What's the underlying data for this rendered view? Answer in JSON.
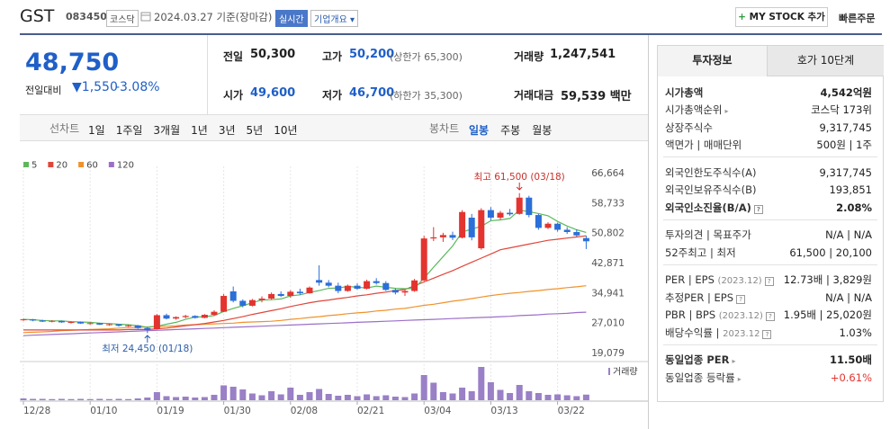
{
  "header": {
    "name": "GST",
    "code": "083450",
    "market": "코스닥",
    "date": "2024.03.27 기준(장마감)",
    "status": "실시간",
    "menu": "기업개요",
    "mystock": "MY STOCK 추가",
    "quick_order": "빠른주문"
  },
  "price": {
    "current": "48,750",
    "change_label": "전일대비",
    "change": "1,550",
    "rate": "-3.08%"
  },
  "summary": {
    "prev": {
      "label": "전일",
      "value": "50,300"
    },
    "high": {
      "label": "고가",
      "value": "50,200",
      "note": "(상한가 65,300)"
    },
    "volume": {
      "label": "거래량",
      "value": "1,247,541"
    },
    "open": {
      "label": "시가",
      "value": "49,600"
    },
    "low": {
      "label": "저가",
      "value": "46,700",
      "note": "(하한가 35,300)"
    },
    "amount": {
      "label": "거래대금",
      "value": "59,539 백만"
    }
  },
  "toolbar": {
    "line_label": "선차트",
    "periods": [
      "1일",
      "1주일",
      "3개월",
      "1년",
      "3년",
      "5년",
      "10년"
    ],
    "candle_label": "봉차트",
    "intervals": [
      "일봉",
      "주봉",
      "월봉"
    ],
    "active_interval": 0
  },
  "chart_data": {
    "type": "candlestick",
    "categories": [
      "12/28",
      null,
      null,
      null,
      null,
      null,
      null,
      "01/10",
      null,
      null,
      null,
      null,
      null,
      null,
      "01/19",
      null,
      null,
      null,
      null,
      null,
      null,
      "01/30",
      null,
      null,
      null,
      null,
      null,
      null,
      "02/08",
      null,
      null,
      null,
      null,
      null,
      null,
      "02/21",
      null,
      null,
      null,
      null,
      null,
      null,
      "03/04",
      null,
      null,
      null,
      null,
      null,
      null,
      "03/13",
      null,
      null,
      null,
      null,
      null,
      null,
      "03/22",
      null,
      null,
      null
    ],
    "ohlc": [
      [
        28000,
        28300,
        27700,
        28100
      ],
      [
        28100,
        28200,
        27600,
        27800
      ],
      [
        27800,
        28000,
        27400,
        27500
      ],
      [
        27500,
        27900,
        27300,
        27700
      ],
      [
        27700,
        27800,
        27200,
        27300
      ],
      [
        27300,
        27600,
        27000,
        27400
      ],
      [
        27400,
        27500,
        26900,
        27000
      ],
      [
        27000,
        27300,
        26700,
        27100
      ],
      [
        27100,
        27200,
        26600,
        26700
      ],
      [
        26700,
        27000,
        26400,
        26800
      ],
      [
        26800,
        26900,
        26200,
        26400
      ],
      [
        26400,
        26700,
        26100,
        26500
      ],
      [
        26500,
        26600,
        25600,
        25800
      ],
      [
        25800,
        26000,
        24450,
        25300
      ],
      [
        25500,
        29500,
        25400,
        29200
      ],
      [
        29200,
        29600,
        28100,
        28300
      ],
      [
        28300,
        28900,
        28000,
        28700
      ],
      [
        28700,
        29300,
        28400,
        29000
      ],
      [
        29000,
        29200,
        28300,
        28500
      ],
      [
        28500,
        29500,
        28400,
        29300
      ],
      [
        29300,
        30500,
        29000,
        30100
      ],
      [
        30100,
        34800,
        30000,
        34300
      ],
      [
        35500,
        36800,
        32600,
        33000
      ],
      [
        33000,
        33400,
        31300,
        31700
      ],
      [
        31700,
        33500,
        31500,
        33200
      ],
      [
        33200,
        34200,
        32600,
        33600
      ],
      [
        33600,
        35200,
        33300,
        34800
      ],
      [
        34800,
        35500,
        34000,
        34300
      ],
      [
        34300,
        35800,
        33800,
        35400
      ],
      [
        35400,
        36200,
        34600,
        35000
      ],
      [
        35000,
        36800,
        34900,
        36500
      ],
      [
        38500,
        42400,
        37000,
        37800
      ],
      [
        37800,
        38500,
        36600,
        37000
      ],
      [
        37000,
        37800,
        35000,
        35600
      ],
      [
        35600,
        37300,
        35400,
        37000
      ],
      [
        37000,
        37600,
        35900,
        36200
      ],
      [
        36200,
        38600,
        36000,
        38200
      ],
      [
        38200,
        39000,
        37300,
        37700
      ],
      [
        37700,
        38200,
        35600,
        35900
      ],
      [
        35900,
        36300,
        34700,
        35200
      ],
      [
        35200,
        36000,
        34300,
        35600
      ],
      [
        35600,
        38800,
        35400,
        38400
      ],
      [
        38400,
        50200,
        38200,
        49500
      ],
      [
        49500,
        52500,
        48800,
        49800
      ],
      [
        49800,
        51000,
        48600,
        50400
      ],
      [
        50400,
        51300,
        49100,
        49700
      ],
      [
        49700,
        57000,
        49500,
        56500
      ],
      [
        55000,
        56000,
        49000,
        49800
      ],
      [
        46900,
        57500,
        46500,
        57000
      ],
      [
        57000,
        57800,
        54300,
        55000
      ],
      [
        55000,
        56800,
        54500,
        56300
      ],
      [
        56300,
        57300,
        55500,
        55900
      ],
      [
        56000,
        61500,
        55800,
        60300
      ],
      [
        60300,
        60800,
        55100,
        55700
      ],
      [
        55700,
        56000,
        51800,
        52300
      ],
      [
        52300,
        53800,
        52000,
        53400
      ],
      [
        53400,
        53700,
        51300,
        51800
      ],
      [
        51800,
        52500,
        50700,
        51200
      ],
      [
        51200,
        51900,
        50000,
        50300
      ],
      [
        49600,
        50200,
        46700,
        48750
      ]
    ],
    "up_color": "#e3342f",
    "down_color": "#2b6fd8",
    "series": [
      {
        "name": "5",
        "color": "#5cb85c",
        "values": [
          28100,
          28000,
          27800,
          27700,
          27700,
          27500,
          27400,
          27300,
          27100,
          27000,
          26800,
          26700,
          26400,
          26000,
          26300,
          26800,
          27300,
          28100,
          28700,
          28800,
          29100,
          30200,
          31000,
          31700,
          32500,
          33200,
          33300,
          33500,
          34300,
          34600,
          35200,
          35700,
          36300,
          36400,
          36800,
          36600,
          36400,
          36900,
          36600,
          36300,
          36200,
          36300,
          39000,
          41900,
          44700,
          47500,
          51200,
          52000,
          52700,
          54200,
          54400,
          54800,
          57000,
          56600,
          56100,
          55500,
          54000,
          52800,
          51800,
          51100
        ]
      },
      {
        "name": "20",
        "color": "#e0463a",
        "values": [
          25300,
          25300,
          25300,
          25300,
          25300,
          25300,
          25300,
          25300,
          25300,
          25300,
          25300,
          25400,
          25400,
          25400,
          25600,
          25800,
          26100,
          26400,
          26700,
          27000,
          27400,
          27800,
          28300,
          28800,
          29400,
          29900,
          30400,
          30900,
          31500,
          32000,
          32500,
          32900,
          33200,
          33600,
          33900,
          34300,
          34600,
          35000,
          35300,
          35700,
          36000,
          37000,
          38000,
          39000,
          40000,
          41000,
          42100,
          43200,
          44300,
          45400,
          46500,
          47000,
          47500,
          48000,
          48500,
          49000,
          49300,
          49600,
          49900,
          50200
        ]
      },
      {
        "name": "60",
        "color": "#f0922b",
        "values": [
          24600,
          24700,
          24800,
          24900,
          25100,
          25200,
          25300,
          25400,
          25500,
          25600,
          25800,
          25900,
          26000,
          26100,
          26200,
          26300,
          26400,
          26600,
          26700,
          26800,
          26900,
          27000,
          27100,
          27300,
          27400,
          27500,
          27600,
          27800,
          28100,
          28300,
          28600,
          28800,
          29100,
          29300,
          29600,
          29800,
          30000,
          30300,
          30500,
          30800,
          31000,
          31400,
          31800,
          32100,
          32500,
          32900,
          33200,
          33600,
          34000,
          34400,
          34700,
          35000,
          35200,
          35500,
          35700,
          36000,
          36200,
          36500,
          36700,
          37000
        ]
      },
      {
        "name": "120",
        "color": "#9b6fc9",
        "values": [
          23800,
          23900,
          24000,
          24100,
          24200,
          24300,
          24400,
          24500,
          24600,
          24700,
          24800,
          24900,
          25000,
          25100,
          25200,
          25300,
          25400,
          25500,
          25600,
          25700,
          25800,
          25900,
          26000,
          26100,
          26200,
          26300,
          26400,
          26500,
          26600,
          26700,
          26800,
          26900,
          27000,
          27100,
          27200,
          27300,
          27400,
          27500,
          27600,
          27700,
          27800,
          27900,
          28000,
          28100,
          28200,
          28300,
          28400,
          28500,
          28600,
          28700,
          28800,
          28900,
          29100,
          29200,
          29300,
          29500,
          29600,
          29700,
          29900,
          30000
        ]
      }
    ],
    "ylim": [
      19079,
      66664
    ],
    "yticks": [
      {
        "value": 66664,
        "label": "66,664"
      },
      {
        "value": 58733,
        "label": "58,733"
      },
      {
        "value": 50802,
        "label": "50,802"
      },
      {
        "value": 42871,
        "label": "42,871"
      },
      {
        "value": 34941,
        "label": "34,941"
      },
      {
        "value": 27010,
        "label": "27,010"
      },
      {
        "value": 19079,
        "label": "19,079"
      }
    ],
    "annotations": [
      "최고 61,500 (03/18)",
      "최저 24,450 (01/18)"
    ],
    "volume_label": "거래량",
    "volume_color": "#9a80c6",
    "volume": [
      400000,
      300000,
      300000,
      250000,
      300000,
      250000,
      300000,
      250000,
      300000,
      250000,
      300000,
      250000,
      400000,
      600000,
      1800000,
      900000,
      700000,
      800000,
      600000,
      700000,
      1200000,
      3300000,
      3000000,
      2400000,
      1500000,
      1100000,
      2000000,
      1300000,
      2800000,
      1200000,
      1800000,
      2500000,
      1400000,
      1000000,
      1200000,
      900000,
      1300000,
      900000,
      1100000,
      800000,
      700000,
      1500000,
      5600000,
      3900000,
      1800000,
      1500000,
      2800000,
      2000000,
      7400000,
      4000000,
      2300000,
      1600000,
      3400000,
      2000000,
      1600000,
      1200000,
      1300000,
      1100000,
      900000,
      1247541
    ],
    "xgrid": true
  },
  "info_panel": {
    "tabs": [
      "투자정보",
      "호가 10단계"
    ],
    "active_tab": 0,
    "groups": [
      [
        {
          "label": "시가총액",
          "value": "4,542억원",
          "emphasis": true
        },
        {
          "label": "시가총액순위",
          "link": true,
          "value": "코스닥 173위"
        },
        {
          "label": "상장주식수",
          "value": "9,317,745"
        },
        {
          "label": "액면가 | 매매단위",
          "value": "500원 | 1주"
        }
      ],
      [
        {
          "label": "외국인한도주식수(A)",
          "value": "9,317,745"
        },
        {
          "label": "외국인보유주식수(B)",
          "value": "193,851"
        },
        {
          "label": "외국인소진율(B/A)",
          "help": true,
          "value": "2.08%",
          "emphasis": true
        }
      ],
      [
        {
          "label": "투자의견 | 목표주가",
          "value": "N/A | N/A"
        },
        {
          "label": "52주최고 | 최저",
          "value": "61,500 | 20,100"
        }
      ],
      [
        {
          "label": "PER | EPS",
          "sub": "(2023.12)",
          "help": true,
          "value": "12.73배 | 3,829원"
        },
        {
          "label": "추정PER | EPS",
          "help": true,
          "value": "N/A | N/A"
        },
        {
          "label": "PBR | BPS",
          "sub": "(2023.12)",
          "help": true,
          "value": "1.95배 | 25,020원"
        },
        {
          "label": "배당수익률 |",
          "sub": "2023.12",
          "help": true,
          "value": "1.03%"
        }
      ],
      [
        {
          "label": "동일업종 PER",
          "link": true,
          "value": "11.50배",
          "emphasis": true
        },
        {
          "label": "동일업종 등락률",
          "link": true,
          "value": "+0.61%",
          "color": "#e3342f"
        }
      ]
    ]
  }
}
